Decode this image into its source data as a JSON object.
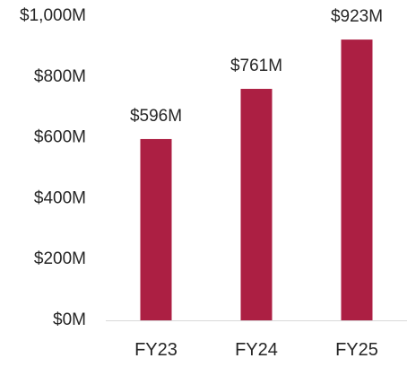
{
  "chart_data": {
    "type": "bar",
    "categories": [
      "FY23",
      "FY24",
      "FY25"
    ],
    "values": [
      596,
      761,
      923
    ],
    "data_labels": [
      "$596M",
      "$761M",
      "$923M"
    ],
    "title": "",
    "xlabel": "",
    "ylabel": "",
    "ylim": [
      0,
      1000
    ],
    "yticks": [
      0,
      200,
      400,
      600,
      800,
      1000
    ],
    "ytick_labels": [
      "$0M",
      "$200M",
      "$400M",
      "$600M",
      "$800M",
      "$1,000M"
    ],
    "grid": false,
    "legend": "none",
    "bar_color": "#AC1F43",
    "axis_color": "#D9D9D9"
  }
}
